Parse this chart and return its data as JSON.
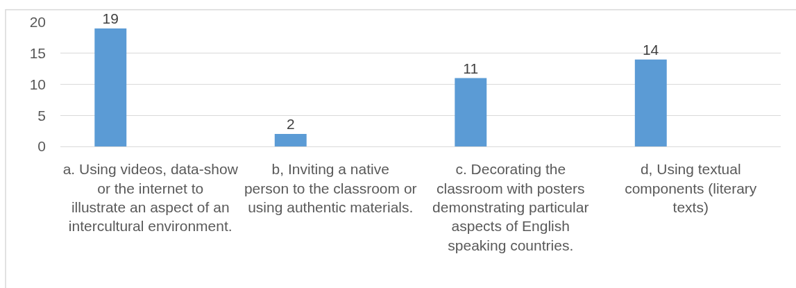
{
  "chart_data": {
    "type": "bar",
    "categories": [
      "a. Using videos, data-show or the internet to illustrate an aspect of an intercultural environment.",
      "b, Inviting a native person to the classroom or using authentic materials.",
      "c. Decorating the classroom with posters demonstrating particular aspects of English speaking countries.",
      "d, Using textual components (literary texts)"
    ],
    "values": [
      19,
      2,
      11,
      14
    ],
    "color": "#5b9bd5",
    "ylim": [
      0,
      20
    ],
    "yticks": [
      0,
      5,
      10,
      15,
      20
    ],
    "grid": "y",
    "data_labels": true
  }
}
